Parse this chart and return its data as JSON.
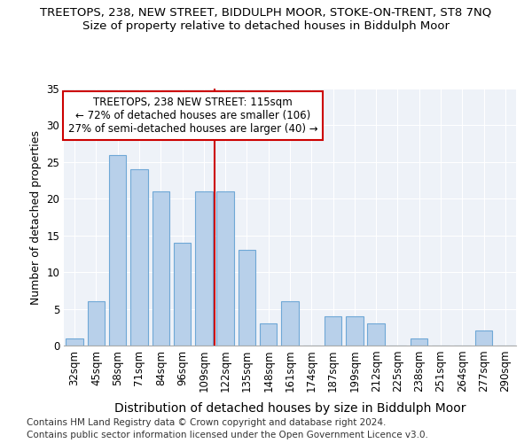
{
  "title": "TREETOPS, 238, NEW STREET, BIDDULPH MOOR, STOKE-ON-TRENT, ST8 7NQ",
  "subtitle": "Size of property relative to detached houses in Biddulph Moor",
  "xlabel": "Distribution of detached houses by size in Biddulph Moor",
  "ylabel": "Number of detached properties",
  "categories": [
    "32sqm",
    "45sqm",
    "58sqm",
    "71sqm",
    "84sqm",
    "96sqm",
    "109sqm",
    "122sqm",
    "135sqm",
    "148sqm",
    "161sqm",
    "174sqm",
    "187sqm",
    "199sqm",
    "212sqm",
    "225sqm",
    "238sqm",
    "251sqm",
    "264sqm",
    "277sqm",
    "290sqm"
  ],
  "values": [
    1,
    6,
    26,
    24,
    21,
    14,
    21,
    21,
    13,
    3,
    6,
    0,
    4,
    4,
    3,
    0,
    1,
    0,
    0,
    2,
    0
  ],
  "bar_color": "#b8d0ea",
  "bar_edge_color": "#6fa8d6",
  "vline_x": 7,
  "vline_color": "#cc0000",
  "annotation_line1": "TREETOPS, 238 NEW STREET: 115sqm",
  "annotation_line2": "← 72% of detached houses are smaller (106)",
  "annotation_line3": "27% of semi-detached houses are larger (40) →",
  "annotation_box_color": "#ffffff",
  "annotation_border_color": "#cc0000",
  "ylim": [
    0,
    35
  ],
  "yticks": [
    0,
    5,
    10,
    15,
    20,
    25,
    30,
    35
  ],
  "footnote1": "Contains HM Land Registry data © Crown copyright and database right 2024.",
  "footnote2": "Contains public sector information licensed under the Open Government Licence v3.0.",
  "background_color": "#eef2f8",
  "title_fontsize": 9.5,
  "subtitle_fontsize": 9.5,
  "xlabel_fontsize": 10,
  "ylabel_fontsize": 9,
  "tick_fontsize": 8.5,
  "annotation_fontsize": 8.5,
  "footnote_fontsize": 7.5
}
